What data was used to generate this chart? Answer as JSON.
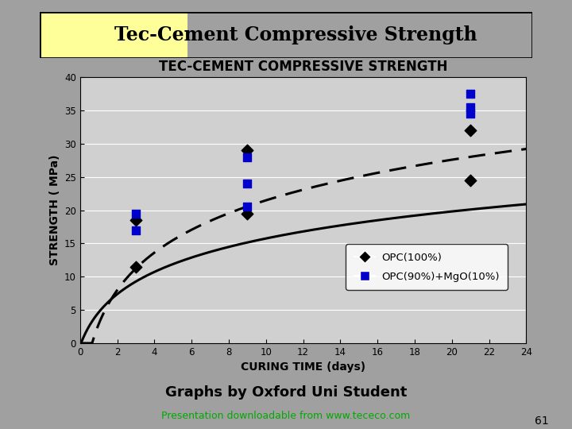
{
  "title_banner": "Tec-Cement Compressive Strength",
  "chart_title": "TEC-CEMENT COMPRESSIVE STRENGTH",
  "xlabel": "CURING TIME (days)",
  "ylabel": "STRENGTH ( MPa)",
  "xlim": [
    0,
    24
  ],
  "ylim": [
    0,
    40
  ],
  "xticks": [
    0,
    2,
    4,
    6,
    8,
    10,
    12,
    14,
    16,
    18,
    20,
    22,
    24
  ],
  "yticks": [
    0,
    5,
    10,
    15,
    20,
    25,
    30,
    35,
    40
  ],
  "bg_color": "#a0a0a0",
  "plot_bg_color": "#d0d0d0",
  "chart_bg_color": "#f0f0f0",
  "opc100_scatter_x": [
    3,
    3,
    9,
    9,
    21,
    21
  ],
  "opc100_scatter_y": [
    11.5,
    18.5,
    19.5,
    29.0,
    24.5,
    32.0
  ],
  "opc90_scatter_x": [
    3,
    3,
    9,
    9,
    9,
    21,
    21,
    21
  ],
  "opc90_scatter_y": [
    17.0,
    19.5,
    20.5,
    24.0,
    28.0,
    34.5,
    35.5,
    37.5
  ],
  "opc100_color": "#000000",
  "opc90_color": "#0000cc",
  "footer_text1": "Graphs by Oxford Uni Student",
  "footer_text2": "Presentation downloadable from www.tececo.com",
  "page_number": "61",
  "banner_green": "#00ff00",
  "banner_yellow": "#ffff99",
  "banner_border": "#000000"
}
